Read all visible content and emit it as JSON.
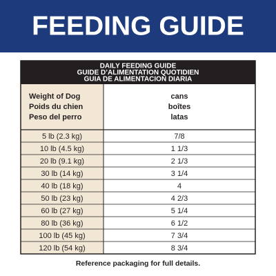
{
  "header": {
    "title": "FEEDING GUIDE"
  },
  "table": {
    "title_lines": [
      "DAILY FEEDING GUIDE",
      "GUIDE D’ALIMENTATION QUOTIDIEN",
      "GUIA DE ALIMENTACION DIARIA"
    ],
    "column_headers": [
      [
        "Weight of Dog",
        "Poids du chien",
        "Peso del perro"
      ],
      [
        "cans",
        "boîtes",
        "latas"
      ]
    ],
    "rows": [
      [
        "5 lb (2.3 kg)",
        "7/8"
      ],
      [
        "10 lb (4.5 kg)",
        "1 1/3"
      ],
      [
        "20 lb (9.1 kg)",
        "2 1/3"
      ],
      [
        "30 lb (14 kg)",
        "3 1/4"
      ],
      [
        "40 lb (18 kg)",
        "4"
      ],
      [
        "50 lb (23 kg)",
        "4 2/3"
      ],
      [
        "60 lb (27 kg)",
        "5 1/4"
      ],
      [
        "80 lb (36 kg)",
        "6 1/2"
      ],
      [
        "100 lb (45 kg)",
        "7 3/4"
      ],
      [
        "120 lb (54 kg)",
        "8 3/4"
      ]
    ]
  },
  "footer": {
    "note": "Reference packaging for full details."
  }
}
